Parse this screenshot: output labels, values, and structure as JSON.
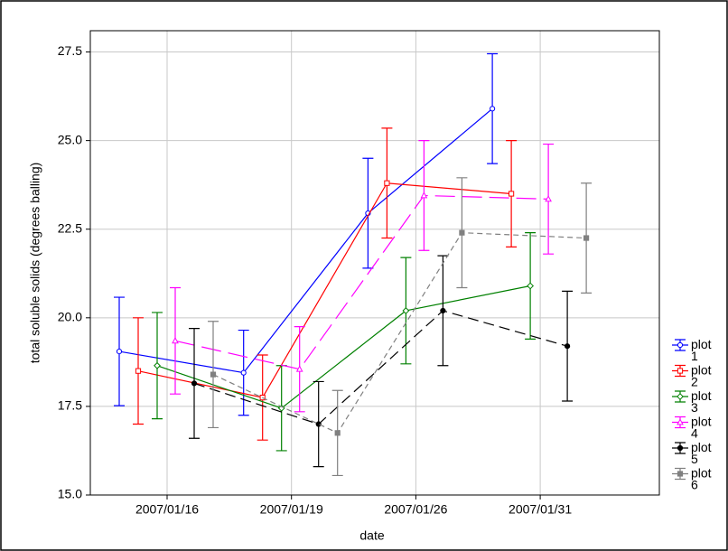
{
  "chart_data": {
    "type": "line",
    "xlabel": "date",
    "ylabel": "total soluble solids (degrees balling)",
    "categories": [
      "2007/01/16",
      "2007/01/19",
      "2007/01/26",
      "2007/01/31"
    ],
    "ylim": [
      15,
      28.1
    ],
    "yticks": [
      {
        "value": 15,
        "label": "15.0"
      },
      {
        "value": 17.5,
        "label": "17.5"
      },
      {
        "value": 20,
        "label": "20.0"
      },
      {
        "value": 22.5,
        "label": "22.5"
      },
      {
        "value": 25,
        "label": "25.0"
      },
      {
        "value": 27.5,
        "label": "27.5"
      }
    ],
    "grid": true,
    "legend": "lower right",
    "series": [
      {
        "name": "plot 1",
        "color": "#0000ff",
        "marker": "circle-open",
        "dash": "none",
        "values": [
          19.05,
          18.45,
          22.95,
          25.9
        ],
        "errors": [
          1.53,
          1.2,
          1.55,
          1.55
        ]
      },
      {
        "name": "plot 2",
        "color": "#ff0000",
        "marker": "square-open",
        "dash": "none",
        "values": [
          18.5,
          17.75,
          23.8,
          23.5
        ],
        "errors": [
          1.5,
          1.2,
          1.55,
          1.5
        ]
      },
      {
        "name": "plot 3",
        "color": "#008000",
        "marker": "diamond-open",
        "dash": "none",
        "values": [
          18.65,
          17.45,
          20.2,
          20.9
        ],
        "errors": [
          1.5,
          1.2,
          1.5,
          1.5
        ]
      },
      {
        "name": "plot 4",
        "color": "#ff00ff",
        "marker": "triangle-open",
        "dash": "22 8",
        "values": [
          19.35,
          18.55,
          23.45,
          23.35
        ],
        "errors": [
          1.5,
          1.2,
          1.55,
          1.55
        ]
      },
      {
        "name": "plot 5",
        "color": "#000000",
        "marker": "circle-filled",
        "dash": "12 6",
        "values": [
          18.15,
          17.0,
          20.2,
          19.2
        ],
        "errors": [
          1.55,
          1.2,
          1.55,
          1.55
        ]
      },
      {
        "name": "plot 6",
        "color": "#808080",
        "marker": "square-filled",
        "dash": "6 4",
        "values": [
          18.4,
          16.75,
          22.4,
          22.25
        ],
        "errors": [
          1.5,
          1.2,
          1.55,
          1.55
        ]
      }
    ]
  }
}
